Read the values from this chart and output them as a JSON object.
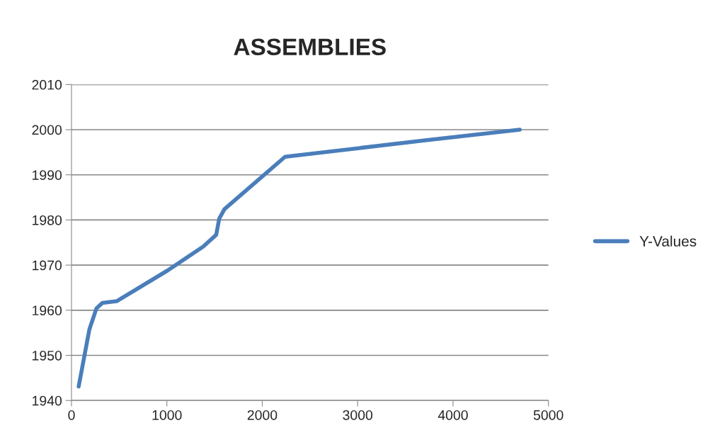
{
  "chart_data": {
    "type": "line",
    "title": "ASSEMBLIES",
    "x": [
      75,
      187,
      261,
      323,
      473,
      1007,
      1381,
      1517,
      1549,
      1604,
      2239,
      3694,
      4700
    ],
    "series": [
      {
        "name": "Y-Values",
        "color": "#4a7ebb",
        "values": [
          1943.1,
          1955.7,
          1960.4,
          1961.6,
          1962.0,
          1968.8,
          1974.1,
          1976.7,
          1980.3,
          1982.4,
          1994.0,
          1997.6,
          2000.0
        ]
      }
    ],
    "xlim": [
      0,
      5000
    ],
    "xticks": [
      0,
      1000,
      2000,
      3000,
      4000,
      5000
    ],
    "ylim": [
      1940,
      2010
    ],
    "yticks": [
      1940,
      1950,
      1960,
      1970,
      1980,
      1990,
      2000,
      2010
    ],
    "grid": "y",
    "legend": "right",
    "marker": "none",
    "line_style": "solid"
  }
}
